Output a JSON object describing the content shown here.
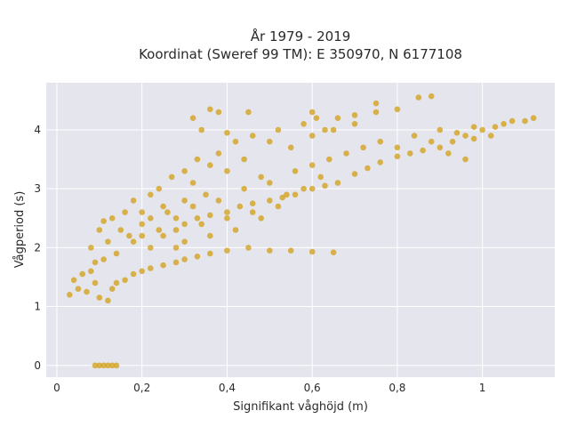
{
  "chart_data": {
    "type": "scatter",
    "title_line1": "År 1979 - 2019",
    "title_line2": "Koordinat (Sweref 99 TM): E 350970, N 6177108",
    "xlabel": "Signifikant våghöjd (m)",
    "ylabel": "Vågperiod (s)",
    "xlim": [
      -0.025,
      1.17
    ],
    "ylim": [
      -0.2,
      4.8
    ],
    "x_ticks": [
      {
        "value": 0,
        "label": "0"
      },
      {
        "value": 0.2,
        "label": "0,2"
      },
      {
        "value": 0.4,
        "label": "0,4"
      },
      {
        "value": 0.6,
        "label": "0,6"
      },
      {
        "value": 0.8,
        "label": "0,8"
      },
      {
        "value": 1,
        "label": "1"
      }
    ],
    "y_ticks": [
      {
        "value": 0,
        "label": "0"
      },
      {
        "value": 1,
        "label": "1"
      },
      {
        "value": 2,
        "label": "2"
      },
      {
        "value": 3,
        "label": "3"
      },
      {
        "value": 4,
        "label": "4"
      }
    ],
    "grid": true,
    "background_color": "#e5e5ee",
    "marker_color": "#d4a21c",
    "series": [
      {
        "points": [
          [
            0.09,
            0
          ],
          [
            0.1,
            0
          ],
          [
            0.11,
            0
          ],
          [
            0.12,
            0
          ],
          [
            0.13,
            0
          ],
          [
            0.14,
            0
          ],
          [
            0.03,
            1.2
          ],
          [
            0.04,
            1.45
          ],
          [
            0.05,
            1.3
          ],
          [
            0.06,
            1.55
          ],
          [
            0.07,
            1.25
          ],
          [
            0.08,
            1.6
          ],
          [
            0.09,
            1.4
          ],
          [
            0.1,
            1.15
          ],
          [
            0.11,
            1.8
          ],
          [
            0.12,
            1.1
          ],
          [
            0.13,
            1.3
          ],
          [
            0.08,
            2.0
          ],
          [
            0.09,
            1.75
          ],
          [
            0.1,
            2.3
          ],
          [
            0.11,
            2.45
          ],
          [
            0.12,
            2.1
          ],
          [
            0.13,
            2.5
          ],
          [
            0.14,
            1.9
          ],
          [
            0.15,
            2.3
          ],
          [
            0.16,
            2.6
          ],
          [
            0.17,
            2.2
          ],
          [
            0.18,
            2.8
          ],
          [
            0.2,
            2.4
          ],
          [
            0.14,
            1.4
          ],
          [
            0.16,
            1.45
          ],
          [
            0.18,
            1.55
          ],
          [
            0.2,
            1.6
          ],
          [
            0.22,
            1.65
          ],
          [
            0.25,
            1.7
          ],
          [
            0.28,
            1.75
          ],
          [
            0.3,
            1.8
          ],
          [
            0.33,
            1.85
          ],
          [
            0.36,
            1.9
          ],
          [
            0.4,
            1.95
          ],
          [
            0.45,
            2.0
          ],
          [
            0.5,
            1.95
          ],
          [
            0.55,
            1.95
          ],
          [
            0.6,
            1.93
          ],
          [
            0.65,
            1.92
          ],
          [
            0.2,
            2.6
          ],
          [
            0.22,
            2.9
          ],
          [
            0.24,
            3.0
          ],
          [
            0.25,
            2.7
          ],
          [
            0.27,
            3.2
          ],
          [
            0.28,
            2.5
          ],
          [
            0.3,
            3.3
          ],
          [
            0.3,
            2.8
          ],
          [
            0.32,
            3.1
          ],
          [
            0.33,
            3.5
          ],
          [
            0.35,
            2.9
          ],
          [
            0.36,
            3.4
          ],
          [
            0.38,
            3.6
          ],
          [
            0.4,
            3.3
          ],
          [
            0.42,
            3.8
          ],
          [
            0.44,
            3.5
          ],
          [
            0.46,
            3.9
          ],
          [
            0.48,
            3.2
          ],
          [
            0.5,
            3.8
          ],
          [
            0.52,
            4.0
          ],
          [
            0.55,
            3.7
          ],
          [
            0.58,
            4.1
          ],
          [
            0.6,
            3.9
          ],
          [
            0.63,
            4.0
          ],
          [
            0.66,
            4.2
          ],
          [
            0.7,
            4.1
          ],
          [
            0.75,
            4.3
          ],
          [
            0.8,
            4.35
          ],
          [
            0.85,
            4.55
          ],
          [
            0.88,
            4.57
          ],
          [
            0.22,
            2.0
          ],
          [
            0.25,
            2.2
          ],
          [
            0.28,
            2.3
          ],
          [
            0.3,
            2.4
          ],
          [
            0.33,
            2.5
          ],
          [
            0.36,
            2.55
          ],
          [
            0.4,
            2.6
          ],
          [
            0.43,
            2.7
          ],
          [
            0.46,
            2.75
          ],
          [
            0.5,
            2.8
          ],
          [
            0.53,
            2.85
          ],
          [
            0.56,
            2.9
          ],
          [
            0.6,
            3.0
          ],
          [
            0.63,
            3.05
          ],
          [
            0.66,
            3.1
          ],
          [
            0.7,
            3.25
          ],
          [
            0.73,
            3.35
          ],
          [
            0.76,
            3.45
          ],
          [
            0.8,
            3.55
          ],
          [
            0.83,
            3.6
          ],
          [
            0.86,
            3.65
          ],
          [
            0.9,
            3.7
          ],
          [
            0.93,
            3.8
          ],
          [
            0.96,
            3.9
          ],
          [
            1.0,
            4.0
          ],
          [
            1.03,
            4.05
          ],
          [
            1.07,
            4.15
          ],
          [
            1.12,
            4.2
          ],
          [
            0.18,
            2.1
          ],
          [
            0.2,
            2.2
          ],
          [
            0.22,
            2.5
          ],
          [
            0.24,
            2.3
          ],
          [
            0.26,
            2.6
          ],
          [
            0.28,
            2.0
          ],
          [
            0.3,
            2.1
          ],
          [
            0.32,
            2.7
          ],
          [
            0.34,
            2.4
          ],
          [
            0.36,
            2.2
          ],
          [
            0.38,
            2.8
          ],
          [
            0.4,
            2.5
          ],
          [
            0.42,
            2.3
          ],
          [
            0.44,
            3.0
          ],
          [
            0.46,
            2.6
          ],
          [
            0.48,
            2.5
          ],
          [
            0.5,
            3.1
          ],
          [
            0.52,
            2.7
          ],
          [
            0.54,
            2.9
          ],
          [
            0.56,
            3.3
          ],
          [
            0.58,
            3.0
          ],
          [
            0.6,
            3.4
          ],
          [
            0.62,
            3.2
          ],
          [
            0.64,
            3.5
          ],
          [
            0.68,
            3.6
          ],
          [
            0.72,
            3.7
          ],
          [
            0.76,
            3.8
          ],
          [
            0.8,
            3.7
          ],
          [
            0.84,
            3.9
          ],
          [
            0.88,
            3.8
          ],
          [
            0.92,
            3.6
          ],
          [
            0.96,
            3.5
          ],
          [
            0.9,
            4.0
          ],
          [
            0.94,
            3.95
          ],
          [
            0.98,
            4.05
          ],
          [
            0.32,
            4.2
          ],
          [
            0.34,
            4.0
          ],
          [
            0.36,
            4.35
          ],
          [
            0.38,
            4.3
          ],
          [
            0.4,
            3.95
          ],
          [
            0.45,
            4.3
          ],
          [
            0.6,
            4.3
          ],
          [
            0.61,
            4.2
          ],
          [
            0.65,
            4.0
          ],
          [
            0.7,
            4.25
          ],
          [
            0.75,
            4.45
          ],
          [
            0.98,
            3.85
          ],
          [
            1.02,
            3.9
          ],
          [
            1.05,
            4.1
          ],
          [
            1.1,
            4.15
          ]
        ]
      }
    ]
  }
}
